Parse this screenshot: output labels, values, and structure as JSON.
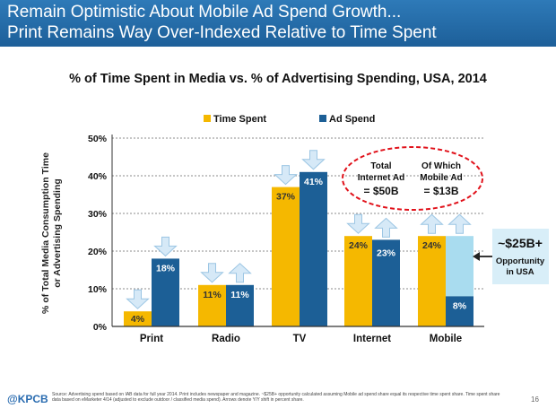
{
  "header": {
    "line1": "Remain Optimistic About Mobile Ad Spend Growth...",
    "line2": "Print Remains Way Over-Indexed Relative to Time Spent"
  },
  "chart_data": {
    "type": "bar",
    "title": "% of Time Spent in Media vs. % of Advertising Spending, USA, 2014",
    "ylabel_line1": "% of Total Media Consumption Time",
    "ylabel_line2": "or Advertising Spending",
    "categories": [
      "Print",
      "Radio",
      "TV",
      "Internet",
      "Mobile"
    ],
    "ylim": [
      0,
      50
    ],
    "yticks": [
      0,
      10,
      20,
      30,
      40,
      50
    ],
    "ytick_labels": [
      "0%",
      "10%",
      "20%",
      "30%",
      "40%",
      "50%"
    ],
    "grid": true,
    "legend_position": "top-center",
    "series": [
      {
        "name": "Time Spent",
        "color": "#f5b800",
        "values": [
          4,
          11,
          37,
          24,
          24
        ],
        "labels": [
          "4%",
          "11%",
          "37%",
          "24%",
          "24%"
        ]
      },
      {
        "name": "Ad Spend",
        "color": "#1c5f96",
        "values": [
          18,
          11,
          41,
          23,
          8
        ],
        "labels": [
          "18%",
          "11%",
          "41%",
          "23%",
          "8%"
        ]
      }
    ],
    "opportunity": {
      "category": "Mobile",
      "from": 8,
      "to": 24,
      "color": "#a9dcef",
      "line1": "~$25B+",
      "line2": "Opportunity",
      "line3": "in USA"
    },
    "arrow_overlays": [
      {
        "category": "Print",
        "series": "Time Spent",
        "direction": "down"
      },
      {
        "category": "Print",
        "series": "Ad Spend",
        "direction": "down"
      },
      {
        "category": "Radio",
        "series": "Time Spent",
        "direction": "down"
      },
      {
        "category": "Radio",
        "series": "Ad Spend",
        "direction": "up"
      },
      {
        "category": "TV",
        "series": "Time Spent",
        "direction": "down"
      },
      {
        "category": "TV",
        "series": "Ad Spend",
        "direction": "down"
      },
      {
        "category": "Internet",
        "series": "Time Spent",
        "direction": "down"
      },
      {
        "category": "Internet",
        "series": "Ad Spend",
        "direction": "up"
      },
      {
        "category": "Mobile",
        "series": "Time Spent",
        "direction": "up"
      },
      {
        "category": "Mobile",
        "series": "Ad Spend",
        "direction": "up"
      }
    ],
    "callout": {
      "col1_line1": "Total",
      "col1_line2": "Internet Ad",
      "col1_value": "= $50B",
      "col2_line1": "Of Which",
      "col2_line2": "Mobile Ad",
      "col2_value": "= $13B"
    }
  },
  "footer": {
    "logo": "@KPCB",
    "source": "Source: Advertising spend based on IAB data for full year 2014. Print includes newspaper and magazine. ~$25B+ opportunity calculated assuming Mobile ad spend share equal its respective time spent share. Time spent share data based on eMarketer 4/14 (adjusted to exclude outdoor / classified media spend). Arrows denote Y/Y shift in percent share.",
    "page": "16"
  }
}
